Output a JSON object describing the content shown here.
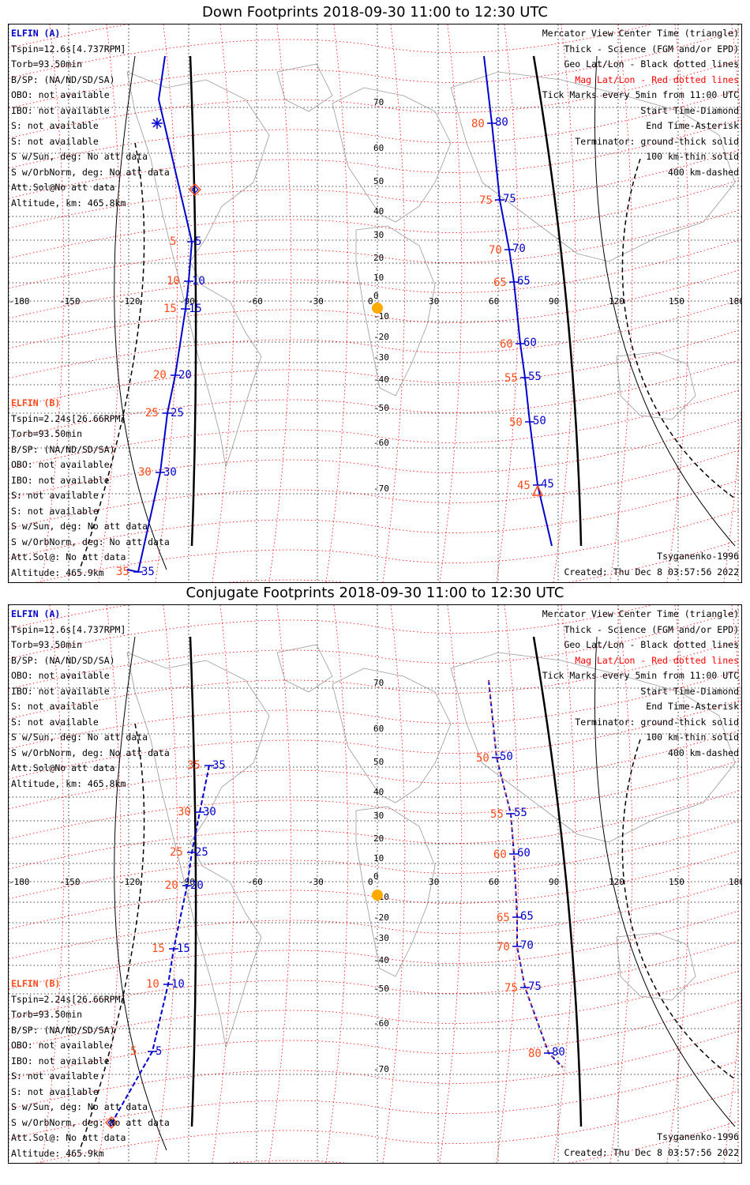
{
  "panels": [
    {
      "id": "down",
      "title": "Down Footprints 2018-09-30 11:00 to 12:30 UTC",
      "left_a": [
        "ELFIN (A)",
        "Tspin=12.6s[4.737RPM]",
        "Torb=93.50min",
        "B/SP: (NA/ND/SD/SA)",
        "OBO: not available",
        "IBO: not available",
        "S: not available",
        "S: not available",
        "S w/Sun, deg: No att data",
        "S w/OrbNorm, deg: No att data",
        "Att.Sol@No att data",
        "Altitude, km: 465.8km"
      ],
      "left_b": [
        "ELFIN (B)",
        "Tspin=2.24s[26.66RPM]",
        "Torb=93.50min",
        "B/SP: (NA/ND/SD/SA)",
        "OBO: not available",
        "IBO: not available",
        "S: not available",
        "S: not available",
        "S w/Sun, deg: No att data",
        "S w/OrbNorm, deg: No att data",
        "Att.Sol@: No att data",
        "Altitude: 465.9km"
      ],
      "right": [
        "Mercator View Center Time (triangle)",
        "Thick - Science (FGM and/or EPD)",
        "Geo Lat/Lon - Black dotted lines",
        "Mag Lat/Lon - Red dotted lines",
        "Tick Marks every 5min from 11:00 UTC",
        "Start Time-Diamond",
        "End Time-Asterisk",
        "Terminator: ground-thick solid",
        "100 km-thin solid",
        "400 km-dashed"
      ],
      "model": "Tsyganenko-1996",
      "created": "Created: Thu Dec  8 03:57:56 2022",
      "ticks_a": [
        [
          "80",
          612,
          125
        ],
        [
          "75",
          622,
          222
        ],
        [
          "70",
          634,
          285
        ],
        [
          "65",
          640,
          326
        ],
        [
          "60",
          648,
          404
        ],
        [
          "55",
          654,
          447
        ],
        [
          "50",
          660,
          503
        ],
        [
          "45",
          670,
          583
        ]
      ],
      "ticks_b_left": [
        [
          "5",
          226,
          275
        ],
        [
          "10",
          222,
          325
        ],
        [
          "15",
          218,
          360
        ],
        [
          "20",
          205,
          444
        ],
        [
          "25",
          195,
          492
        ],
        [
          "30",
          186,
          567
        ],
        [
          "35",
          158,
          693
        ]
      ],
      "marker_a_triangle": [
        670,
        590
      ],
      "marker_b_diamond": [
        236,
        209
      ],
      "marker_b_asterisk": [
        188,
        125
      ]
    },
    {
      "id": "conj",
      "title": "Conjugate Footprints 2018-09-30 11:00 to 12:30 UTC",
      "left_a": [
        "ELFIN (A)",
        "Tspin=12.6s[4.737RPM]",
        "Torb=93.50min",
        "B/SP: (NA/ND/SD/SA)",
        "OBO: not available",
        "IBO: not available",
        "S: not available",
        "S: not available",
        "S w/Sun, deg: No att data",
        "S w/OrbNorm, deg: No att data",
        "Att.Sol@No att data",
        "Altitude, km: 465.8km"
      ],
      "left_b": [
        "ELFIN (B)",
        "Tspin=2.24s[26.66RPM]",
        "Torb=93.50min",
        "B/SP: (NA/ND/SD/SA)",
        "OBO: not available",
        "IBO: not available",
        "S: not available",
        "S: not available",
        "S w/Sun, deg: No att data",
        "S w/OrbNorm, deg: No att data",
        "Att.Sol@: No att data",
        "Altitude: 465.9km"
      ],
      "right": [
        "Mercator View Center Time (triangle)",
        "Thick - Science (FGM and/or EPD)",
        "Geo Lat/Lon - Black dotted lines",
        "Mag Lat/Lon - Red dotted lines",
        "Tick Marks every 5min from 11:00 UTC",
        "Start Time-Diamond",
        "End Time-Asterisk",
        "Terminator: ground-thick solid",
        "100 km-thin solid",
        "400 km-dashed"
      ],
      "model": "Tsyganenko-1996",
      "created": "Created: Thu Dec  8 03:57:56 2022",
      "ticks_a": [
        [
          "50",
          618,
          193
        ],
        [
          "55",
          636,
          264
        ],
        [
          "60",
          640,
          315
        ],
        [
          "65",
          644,
          395
        ],
        [
          "70",
          644,
          432
        ],
        [
          "75",
          654,
          484
        ],
        [
          "80",
          684,
          567
        ]
      ],
      "ticks_b_left": [
        [
          "35",
          248,
          203
        ],
        [
          "30",
          236,
          262
        ],
        [
          "25",
          226,
          313
        ],
        [
          "20",
          220,
          355
        ],
        [
          "15",
          203,
          435
        ],
        [
          "10",
          196,
          480
        ],
        [
          "5",
          176,
          565
        ]
      ],
      "marker_b_diamond": [
        130,
        655
      ]
    }
  ],
  "lon_ticks": [
    "-180",
    "-150",
    "-120",
    "-90",
    "-60",
    "-30",
    "0",
    "30",
    "60",
    "90",
    "120",
    "150",
    "180"
  ],
  "lat_ticks": [
    "70",
    "60",
    "50",
    "40",
    "30",
    "20",
    "10",
    "0",
    "-10",
    "-20",
    "-30",
    "-40",
    "-50",
    "-60",
    "-70"
  ],
  "colors": {
    "blue": "#0000cc",
    "orange": "#ff4a1a",
    "red_grid": "#ff0000",
    "sun": "#ffaa00"
  }
}
